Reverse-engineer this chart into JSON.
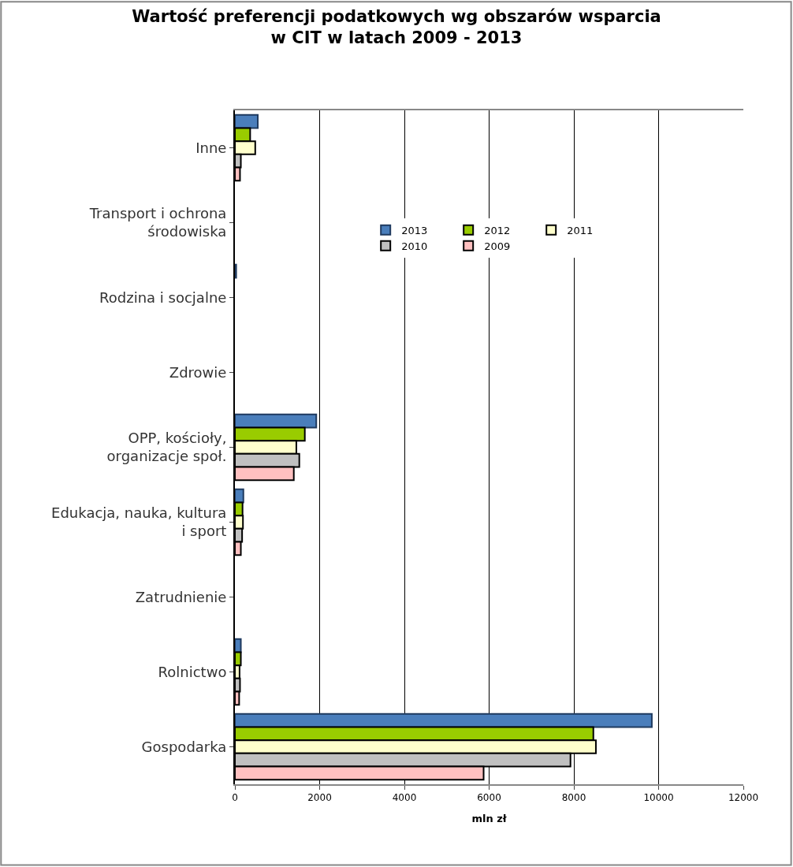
{
  "chart_data": {
    "type": "bar",
    "orientation": "horizontal",
    "title": "Wartość preferencji podatkowych wg obszarów wsparcia\nw CIT w latach 2009 - 2013",
    "xlabel": "mln zł",
    "categories": [
      "Inne",
      "Transport i ochrona\nśrodowiska",
      "Rodzina i socjalne",
      "Zdrowie",
      "OPP, kościoły,\norganizacje społ.",
      "Edukacja, nauka, kultura\ni sport",
      "Zatrudnienie",
      "Rolnictwo",
      "Gospodarka"
    ],
    "series": [
      {
        "name": "2013",
        "color": "#4a7ebb",
        "values": [
          540,
          0,
          30,
          0,
          1920,
          200,
          0,
          140,
          9840
        ]
      },
      {
        "name": "2012",
        "color": "#99cc00",
        "values": [
          360,
          0,
          0,
          0,
          1650,
          180,
          0,
          140,
          8460
        ]
      },
      {
        "name": "2011",
        "color": "#ffffcc",
        "values": [
          480,
          0,
          0,
          0,
          1450,
          190,
          0,
          110,
          8520
        ]
      },
      {
        "name": "2010",
        "color": "#c0c0c0",
        "values": [
          140,
          0,
          0,
          0,
          1520,
          170,
          0,
          120,
          7920
        ]
      },
      {
        "name": "2009",
        "color": "#ffc0c0",
        "values": [
          120,
          0,
          0,
          0,
          1390,
          140,
          0,
          100,
          5870
        ]
      }
    ],
    "xlim": [
      0,
      12000
    ],
    "xticks": [
      0,
      2000,
      4000,
      6000,
      8000,
      10000,
      12000
    ],
    "grid": "x",
    "legend": "top right"
  }
}
